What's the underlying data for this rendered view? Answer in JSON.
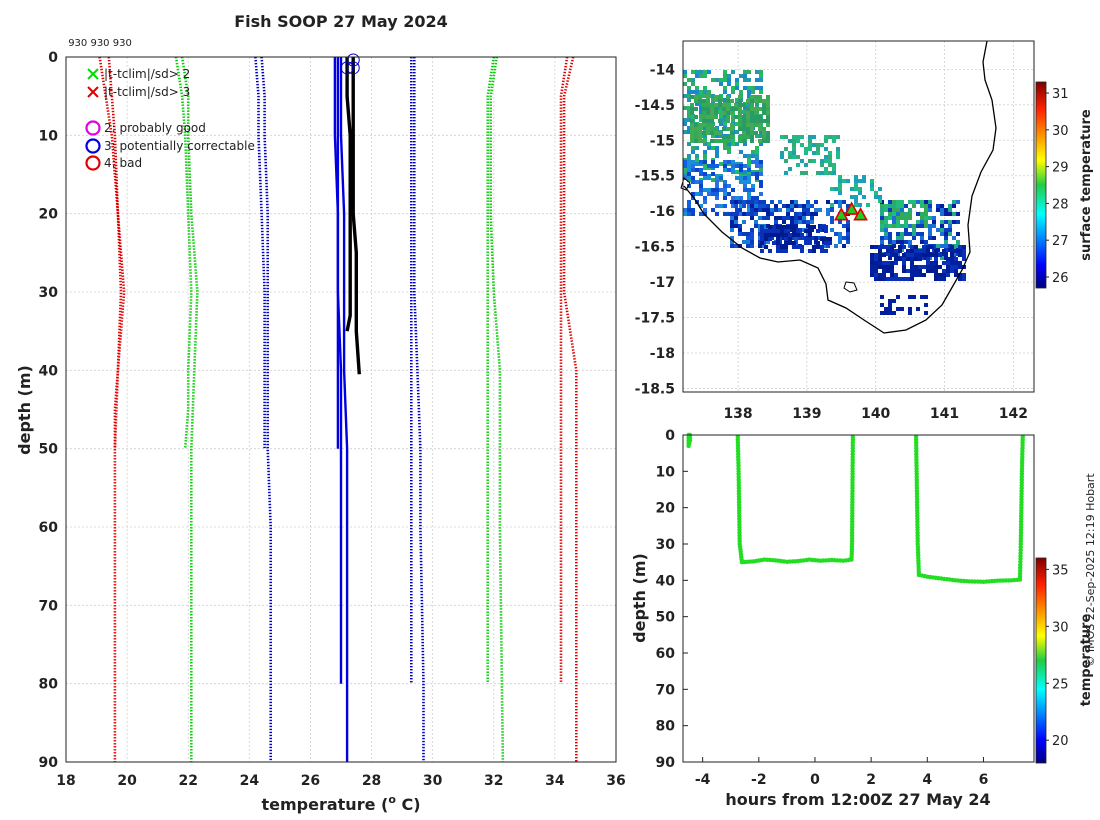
{
  "title": "Fish SOOP 27 May 2024",
  "top_marker_text": "930 930 930",
  "credit": "© IMOS 22-Sep-2025 12:19 Hobart",
  "chart_data": [
    {
      "id": "profile",
      "type": "line",
      "xlabel": "temperature (",
      "xlabel_sup": "o",
      "xlabel_end": " C)",
      "ylabel": "depth (m)",
      "xlim": [
        18,
        36
      ],
      "ylim": [
        90,
        0
      ],
      "xticks": [
        "18",
        "20",
        "22",
        "24",
        "26",
        "28",
        "30",
        "32",
        "34",
        "36"
      ],
      "yticks": [
        "0",
        "10",
        "20",
        "30",
        "40",
        "50",
        "60",
        "70",
        "80",
        "90"
      ],
      "legend": [
        {
          "marker": "x",
          "color": "#00e000",
          "label": "|t-tclim|/sd> 2"
        },
        {
          "marker": "x",
          "color": "#e00000",
          "label": "|t-tclim|/sd> 3"
        },
        {
          "marker": "o",
          "color": "#e000e0",
          "label": "2: probably good"
        },
        {
          "marker": "o",
          "color": "#0000e0",
          "label": "3: potentially correctable"
        },
        {
          "marker": "o",
          "color": "#e00000",
          "label": "4: bad"
        }
      ],
      "series": [
        {
          "name": "clim-3sd-short",
          "color": "#e00000",
          "style": "dotted",
          "x": [
            19.1,
            19.3,
            19.5,
            19.7,
            19.8,
            19.7,
            19.6,
            19.6
          ],
          "y": [
            0,
            5,
            10,
            20,
            30,
            40,
            45,
            50
          ]
        },
        {
          "name": "clim-3sd-long",
          "color": "#e00000",
          "style": "dotted",
          "x": [
            19.4,
            19.5,
            19.6,
            19.7,
            19.9,
            19.7,
            19.6,
            19.6,
            19.6,
            19.6
          ],
          "y": [
            0,
            5,
            10,
            20,
            30,
            40,
            50,
            60,
            80,
            90
          ]
        },
        {
          "name": "clim-2sd-short",
          "color": "#00cc00",
          "style": "dotted",
          "x": [
            21.6,
            21.8,
            21.9,
            22.0,
            22.1,
            22.0,
            22.0,
            21.9
          ],
          "y": [
            0,
            5,
            10,
            20,
            30,
            40,
            45,
            50
          ]
        },
        {
          "name": "clim-2sd-long",
          "color": "#00cc00",
          "style": "dotted",
          "x": [
            21.8,
            22.0,
            22.0,
            22.1,
            22.3,
            22.2,
            22.1,
            22.1,
            22.1,
            22.1
          ],
          "y": [
            0,
            5,
            10,
            20,
            30,
            40,
            50,
            60,
            80,
            90
          ]
        },
        {
          "name": "clim-1sd-short",
          "color": "#0000c0",
          "style": "dotted",
          "x": [
            24.2,
            24.3,
            24.3,
            24.4,
            24.5,
            24.5,
            24.5
          ],
          "y": [
            0,
            5,
            10,
            20,
            30,
            40,
            50
          ]
        },
        {
          "name": "clim-1sd-long",
          "color": "#0000c0",
          "style": "dotted",
          "x": [
            24.4,
            24.5,
            24.5,
            24.6,
            24.6,
            24.6,
            24.6,
            24.7,
            24.7,
            24.7
          ],
          "y": [
            0,
            5,
            10,
            20,
            30,
            40,
            50,
            60,
            80,
            90
          ]
        },
        {
          "name": "clim-mean-short",
          "color": "#0000e0",
          "style": "solid",
          "x": [
            26.8,
            26.8,
            26.8,
            26.9,
            26.9,
            26.9,
            26.9
          ],
          "y": [
            0,
            5,
            10,
            20,
            30,
            40,
            50
          ]
        },
        {
          "name": "clim-mean-long",
          "color": "#0000e0",
          "style": "solid",
          "x": [
            26.9,
            26.9,
            26.9,
            26.9,
            27.0,
            27.0,
            27.0,
            27.0,
            27.0
          ],
          "y": [
            0,
            10,
            20,
            30,
            40,
            50,
            60,
            70,
            80
          ]
        },
        {
          "name": "clim-mean-long2",
          "color": "#0000e0",
          "style": "solid",
          "x": [
            27.0,
            27.0,
            27.1,
            27.1,
            27.1,
            27.2,
            27.2,
            27.2,
            27.2,
            27.2
          ],
          "y": [
            0,
            10,
            20,
            30,
            40,
            50,
            60,
            70,
            80,
            90
          ]
        },
        {
          "name": "clim+1sd-short",
          "color": "#0000c0",
          "style": "dotted",
          "x": [
            29.3,
            29.3,
            29.3,
            29.3,
            29.3,
            29.3,
            29.3,
            29.3
          ],
          "y": [
            0,
            5,
            10,
            20,
            30,
            40,
            60,
            80
          ]
        },
        {
          "name": "clim+1sd-long",
          "color": "#0000c0",
          "style": "dotted",
          "x": [
            29.4,
            29.4,
            29.4,
            29.4,
            29.5,
            29.6,
            29.6,
            29.7,
            29.7
          ],
          "y": [
            0,
            10,
            20,
            30,
            40,
            50,
            60,
            80,
            90
          ]
        },
        {
          "name": "clim+2sd-short",
          "color": "#00cc00",
          "style": "dotted",
          "x": [
            32.0,
            31.8,
            31.8,
            31.8,
            31.8,
            31.8,
            31.8
          ],
          "y": [
            0,
            5,
            10,
            20,
            30,
            40,
            80
          ]
        },
        {
          "name": "clim+2sd-long",
          "color": "#00cc00",
          "style": "dotted",
          "x": [
            32.1,
            31.9,
            31.9,
            31.9,
            32.0,
            32.2,
            32.2,
            32.3
          ],
          "y": [
            0,
            5,
            10,
            20,
            30,
            40,
            60,
            90
          ]
        },
        {
          "name": "clim+3sd-short",
          "color": "#e00000",
          "style": "dotted",
          "x": [
            34.4,
            34.2,
            34.2,
            34.2,
            34.2,
            34.2,
            34.2
          ],
          "y": [
            0,
            5,
            10,
            20,
            30,
            40,
            80
          ]
        },
        {
          "name": "clim+3sd-long",
          "color": "#e00000",
          "style": "dotted",
          "x": [
            34.6,
            34.3,
            34.3,
            34.3,
            34.3,
            34.7,
            34.7,
            34.7
          ],
          "y": [
            0,
            5,
            10,
            20,
            30,
            40,
            60,
            90
          ]
        },
        {
          "name": "obs-profile-1",
          "color": "#000000",
          "style": "thick",
          "x": [
            27.4,
            27.4,
            27.4,
            27.4,
            27.4,
            27.4,
            27.5,
            27.5,
            27.5,
            27.6
          ],
          "y": [
            0,
            2,
            5,
            10,
            15,
            20,
            25,
            30,
            35,
            40.5
          ]
        },
        {
          "name": "obs-profile-2",
          "color": "#000000",
          "style": "thick",
          "x": [
            27.2,
            27.2,
            27.3,
            27.3,
            27.3,
            27.3,
            27.2
          ],
          "y": [
            0,
            5,
            10,
            20,
            30,
            33,
            35
          ]
        }
      ],
      "flags": [
        {
          "x": 27.2,
          "y": 1
        },
        {
          "x": 27.4,
          "y": 1
        },
        {
          "x": 27.4,
          "y": 0
        }
      ]
    },
    {
      "id": "map",
      "type": "heatmap",
      "xlim": [
        137.2,
        142.3
      ],
      "ylim": [
        -18.55,
        -13.6
      ],
      "xticks": [
        "138",
        "139",
        "140",
        "141",
        "142"
      ],
      "yticks": [
        "-14",
        "-14.5",
        "-15",
        "-15.5",
        "-16",
        "-16.5",
        "-17",
        "-17.5",
        "-18",
        "-18.5"
      ],
      "colorbar_label": "surface temperature",
      "colorbar_range": [
        25.7,
        31.3
      ],
      "colorbar_ticks": [
        "26",
        "27",
        "28",
        "29",
        "30",
        "31"
      ],
      "stations": [
        {
          "lon": 139.5,
          "lat": -16.05
        },
        {
          "lon": 139.65,
          "lat": -15.97
        },
        {
          "lon": 139.78,
          "lat": -16.05
        }
      ]
    },
    {
      "id": "timeseries",
      "type": "scatter",
      "xlabel": "hours from 12:00Z 27 May 24",
      "ylabel": "depth (m)",
      "xlim": [
        -4.7,
        7.8
      ],
      "ylim": [
        90,
        0
      ],
      "xticks": [
        "-4",
        "-2",
        "0",
        "2",
        "4",
        "6"
      ],
      "yticks": [
        "0",
        "10",
        "20",
        "30",
        "40",
        "50",
        "60",
        "70",
        "80",
        "90"
      ],
      "colorbar_label": "temperature",
      "colorbar_range": [
        18,
        36
      ],
      "colorbar_ticks": [
        "20",
        "25",
        "30",
        "35"
      ],
      "color": "#22dd22",
      "segments": [
        {
          "x": [
            -4.5,
            -4.5,
            -4.5,
            -4.45,
            -4.45
          ],
          "y": [
            0,
            1.5,
            3,
            1.5,
            0
          ]
        },
        {
          "x": [
            -2.75,
            -2.72,
            -2.7,
            -2.68,
            -2.6,
            -2.2,
            -1.8,
            -1.4,
            -1.0,
            -0.6,
            -0.2,
            0.2,
            0.6,
            1.0,
            1.3,
            1.32,
            1.33,
            1.34,
            1.35
          ],
          "y": [
            0.5,
            10,
            20,
            30,
            35,
            34.8,
            34.3,
            34.5,
            34.9,
            34.7,
            34.3,
            34.6,
            34.4,
            34.6,
            34.3,
            30,
            20,
            10,
            0.5
          ]
        },
        {
          "x": [
            3.6,
            3.62,
            3.64,
            3.66,
            3.7,
            4.0,
            4.5,
            5.0,
            5.5,
            6.0,
            6.5,
            7.0,
            7.3,
            7.33,
            7.35,
            7.37,
            7.4
          ],
          "y": [
            0.5,
            10,
            20,
            30,
            38.5,
            39,
            39.5,
            40,
            40.3,
            40.4,
            40.1,
            40,
            39.8,
            30,
            20,
            10,
            0.5
          ]
        }
      ]
    }
  ]
}
